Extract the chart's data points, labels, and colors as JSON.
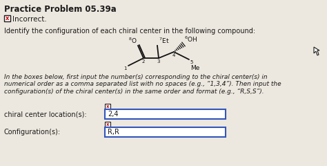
{
  "title": "Practice Problem 05.39a",
  "incorrect_label": "Incorrect.",
  "body_text1": "Identify the configuration of each chiral center in the following compound:",
  "instructions": "In the boxes below, first input the number(s) corresponding to the chiral center(s) in\nnumerical order as a comma separated list with no spaces (e.g., “1,3,4”). Then input the\nconfiguration(s) of the chiral center(s) in the same order and format (e.g., “R,S,S”).",
  "label1": "chiral center location(s):",
  "label2": "Configuration(s):",
  "answer1": "2,4",
  "answer2": "R,R",
  "bg_color": "#ede8df",
  "text_color": "#1a1a1a",
  "box_border_color": "#3355bb",
  "x_color": "#cc0000",
  "struct_color": "#111111"
}
